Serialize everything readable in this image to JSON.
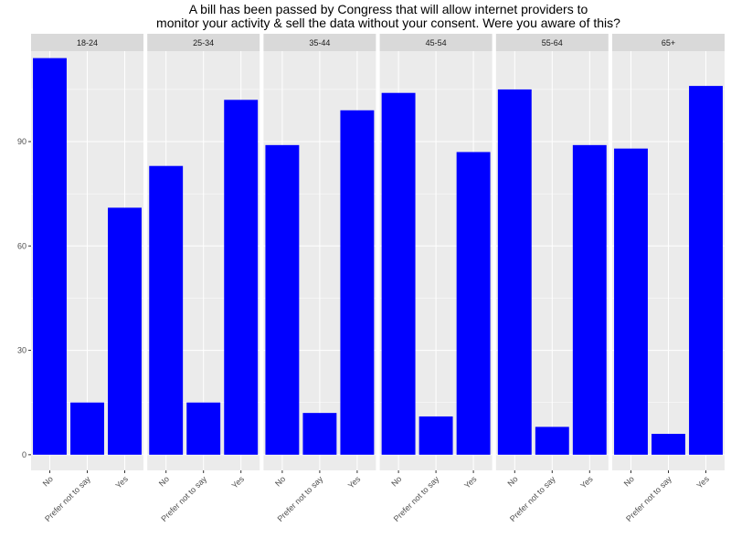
{
  "chart_data": {
    "type": "bar",
    "title_lines": [
      "A bill has been passed by Congress that will allow internet providers to",
      "monitor your activity & sell the data without your consent. Were you aware of this?"
    ],
    "xlabel": "",
    "ylabel": "",
    "categories": [
      "No",
      "Prefer not to say",
      "Yes"
    ],
    "ylim": [
      -4.5,
      116
    ],
    "yticks": [
      0,
      30,
      60,
      90
    ],
    "ytick_labels": [
      "0",
      "30",
      "60",
      "90"
    ],
    "grid": true,
    "bar_color": "#0000ff",
    "panel_background": "#ebebeb",
    "strip_background": "#d9d9d9",
    "gridline_color": "#ffffff",
    "facets": [
      {
        "label": "18-24",
        "values": [
          114,
          15,
          71
        ]
      },
      {
        "label": "25-34",
        "values": [
          83,
          15,
          102
        ]
      },
      {
        "label": "35-44",
        "values": [
          89,
          12,
          99
        ]
      },
      {
        "label": "45-54",
        "values": [
          104,
          11,
          87
        ]
      },
      {
        "label": "55-64",
        "values": [
          105,
          8,
          89
        ]
      },
      {
        "label": "65+",
        "values": [
          88,
          6,
          106
        ]
      }
    ]
  }
}
